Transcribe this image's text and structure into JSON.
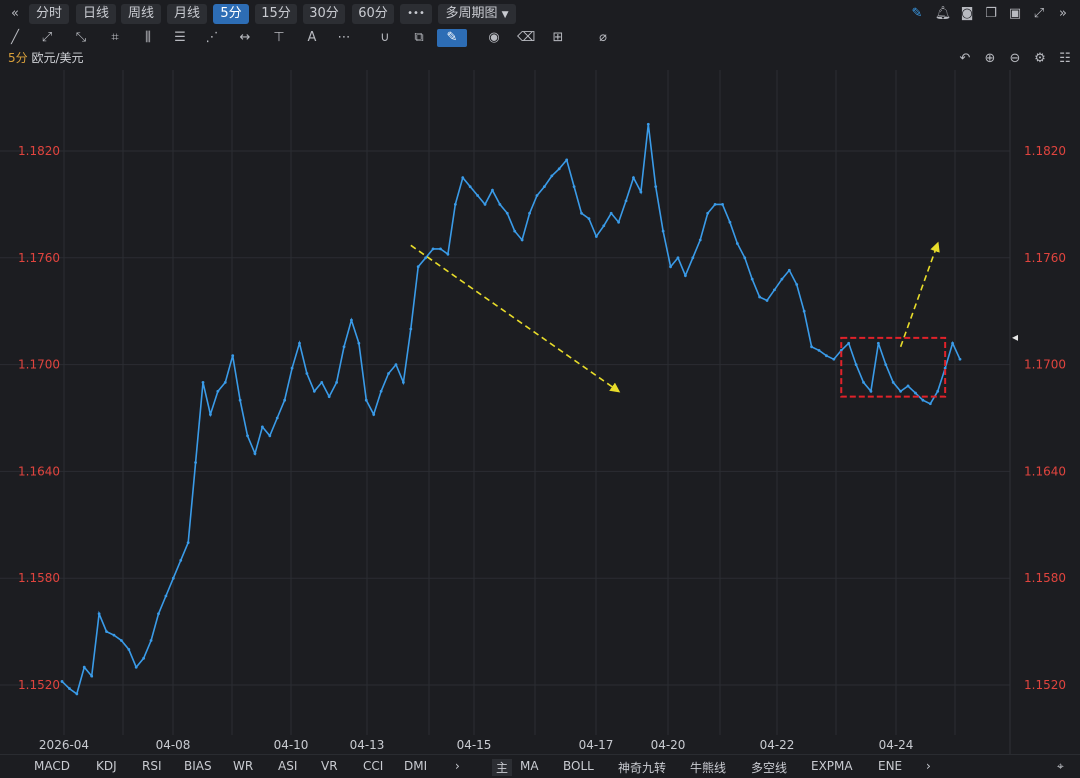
{
  "toolbar": {
    "collapse_icon": "double-chevron-left-icon",
    "periods": [
      "分时",
      "日线",
      "周线",
      "月线",
      "5分",
      "15分",
      "30分",
      "60分"
    ],
    "active_period": "5分",
    "more_label": "•••",
    "multi_period_label": "多周期图",
    "right_icons": [
      "pencil-icon",
      "bell-icon",
      "camera-icon",
      "copy-window-icon",
      "monitor-icon",
      "expand-icon",
      "double-chevron-right-icon"
    ]
  },
  "drawing_tools": [
    "line-icon",
    "ray-icon",
    "segment-icon",
    "crop-icon",
    "bars-icon",
    "align-icon",
    "fan-icon",
    "range-icon",
    "fib-icon",
    "text-icon",
    "more-icon",
    "magnet-icon",
    "layers-icon",
    "pen-icon",
    "eye-icon",
    "trash-icon",
    "grid-icon",
    "eraser-icon"
  ],
  "right_controls": [
    "undo-icon",
    "zoom-in-icon",
    "zoom-out-icon",
    "settings-icon",
    "list-icon"
  ],
  "symbol": {
    "period": "5分",
    "name": "欧元/美元"
  },
  "bottom": {
    "indicators": [
      "MACD",
      "KDJ",
      "RSI",
      "BIAS",
      "WR",
      "ASI",
      "VR",
      "CCI",
      "DMI"
    ],
    "main_label": "主",
    "overlays": [
      "MA",
      "BOLL",
      "神奇九转",
      "牛熊线",
      "多空线",
      "EXPMA",
      "ENE"
    ],
    "next_icon": "chevron-right-icon",
    "location_icon": "location-icon"
  },
  "chart_data": {
    "type": "line",
    "title": "",
    "xlabel": "",
    "ylabel": "",
    "ylim": [
      1.1505,
      1.1845
    ],
    "y_ticks": [
      "1.1820",
      "1.1760",
      "1.1700",
      "1.1640",
      "1.1580",
      "1.1520"
    ],
    "x_ticks": [
      "2026-04",
      "04-08",
      "04-10",
      "04-13",
      "04-15",
      "04-17",
      "04-20",
      "04-22",
      "04-24"
    ],
    "grid": true,
    "line_color": "#3a9be8",
    "tick_color": "#e0443e",
    "series": [
      {
        "values": [
          1.1522,
          1.1518,
          1.1515,
          1.153,
          1.1525,
          1.156,
          1.155,
          1.1548,
          1.1545,
          1.154,
          1.153,
          1.1535,
          1.1545,
          1.156,
          1.157,
          1.158,
          1.159,
          1.16,
          1.1645,
          1.169,
          1.1672,
          1.1685,
          1.169,
          1.1705,
          1.168,
          1.166,
          1.165,
          1.1665,
          1.166,
          1.167,
          1.168,
          1.1698,
          1.1712,
          1.1695,
          1.1685,
          1.169,
          1.1682,
          1.169,
          1.171,
          1.1725,
          1.1712,
          1.168,
          1.1672,
          1.1685,
          1.1695,
          1.17,
          1.169,
          1.172,
          1.1755,
          1.176,
          1.1765,
          1.1765,
          1.1762,
          1.179,
          1.1805,
          1.18,
          1.1795,
          1.179,
          1.1798,
          1.179,
          1.1785,
          1.1775,
          1.177,
          1.1785,
          1.1795,
          1.18,
          1.1806,
          1.181,
          1.1815,
          1.18,
          1.1785,
          1.1782,
          1.1772,
          1.1778,
          1.1785,
          1.178,
          1.1792,
          1.1805,
          1.1797,
          1.1835,
          1.18,
          1.1775,
          1.1755,
          1.176,
          1.175,
          1.176,
          1.177,
          1.1785,
          1.179,
          1.179,
          1.178,
          1.1768,
          1.176,
          1.1748,
          1.1738,
          1.1736,
          1.1742,
          1.1748,
          1.1753,
          1.1745,
          1.173,
          1.171,
          1.1708,
          1.1705,
          1.1703,
          1.1708,
          1.1712,
          1.17,
          1.169,
          1.1685,
          1.1712,
          1.17,
          1.169,
          1.1685,
          1.1688,
          1.1684,
          1.168,
          1.1678,
          1.1685,
          1.1698,
          1.1712,
          1.1703
        ]
      }
    ],
    "annotations": {
      "down_arrow": {
        "from": [
          47,
          1.1767
        ],
        "to": [
          75,
          1.1685
        ],
        "color": "#e8dc2a"
      },
      "up_arrow": {
        "from": [
          113,
          1.171
        ],
        "to": [
          118,
          1.1768
        ],
        "color": "#e8dc2a"
      },
      "box": {
        "x": [
          105,
          119
        ],
        "y": [
          1.1682,
          1.1715
        ],
        "color": "#e0222a"
      },
      "marker_y": 1.1715
    }
  }
}
